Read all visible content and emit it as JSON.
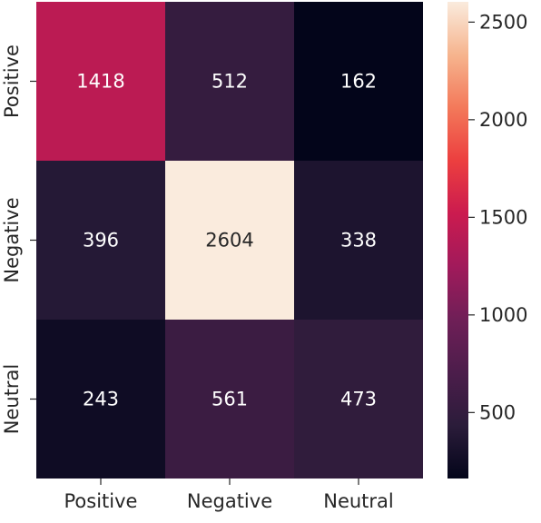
{
  "chart_data": {
    "type": "heatmap",
    "rows": [
      "Positive",
      "Negative",
      "Neutral"
    ],
    "columns": [
      "Positive",
      "Negative",
      "Neutral"
    ],
    "values": [
      [
        1418,
        512,
        162
      ],
      [
        396,
        2604,
        338
      ],
      [
        243,
        561,
        473
      ]
    ],
    "colorbar": {
      "min": 162,
      "max": 2604,
      "ticks": [
        500,
        1000,
        1500,
        2000,
        2500
      ]
    },
    "colormap": "rocket",
    "colormap_stops": [
      "#03051a",
      "#2b1c3a",
      "#4c1d4b",
      "#6f1f57",
      "#a11a5b",
      "#cb1b4f",
      "#ec3f3f",
      "#f3795a",
      "#f6b48e",
      "#faebdd"
    ],
    "title": "",
    "xlabel": "",
    "ylabel": ""
  }
}
